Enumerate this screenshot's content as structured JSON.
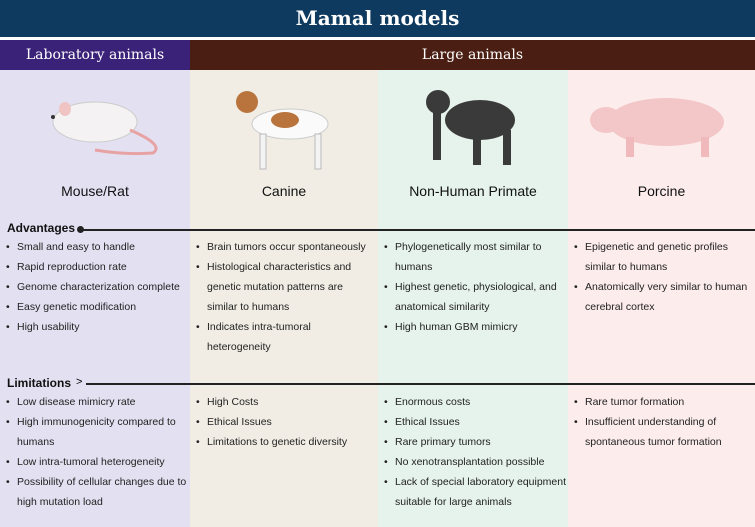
{
  "title": "Mamal models",
  "groups": {
    "laboratory": "Laboratory animals",
    "large": "Large animals"
  },
  "colors": {
    "title_bg": "#0e3a5f",
    "laboratory_bg": "#3b2279",
    "large_bg": "#4a1e12"
  },
  "labels": {
    "advantages": "Advantages",
    "limitations": "Limitations"
  },
  "columns": [
    {
      "name": "Mouse/Rat",
      "icon": "mouse-illustration",
      "advantages": [
        "Small and easy to handle",
        "Rapid reproduction rate",
        "Genome characterization complete",
        "Easy genetic modification",
        "High usability"
      ],
      "limitations": [
        "Low disease mimicry rate",
        "High immunogenicity compared to humans",
        "Low intra-tumoral heterogeneity",
        "Possibility of cellular changes due to high mutation load"
      ]
    },
    {
      "name": "Canine",
      "icon": "dog-illustration",
      "advantages": [
        "Brain tumors occur spontaneously",
        "Histological characteristics and genetic mutation patterns are similar to humans",
        "Indicates intra-tumoral heterogeneity"
      ],
      "limitations": [
        "High Costs",
        "Ethical Issues",
        "Limitations to genetic diversity"
      ]
    },
    {
      "name": "Non-Human Primate",
      "icon": "chimpanzee-illustration",
      "advantages": [
        "Phylogenetically most similar to humans",
        "Highest genetic, physiological, and anatomical similarity",
        "High human GBM mimicry"
      ],
      "limitations": [
        "Enormous costs",
        "Ethical Issues",
        "Rare primary tumors",
        "No xenotransplantation possible",
        "Lack of special laboratory equipment suitable for large animals"
      ]
    },
    {
      "name": "Porcine",
      "icon": "pig-illustration",
      "advantages": [
        "Epigenetic and genetic profiles similar to humans",
        "Anatomically very similar to human cerebral cortex"
      ],
      "limitations": [
        "Rare tumor formation",
        "Insufficient understanding of spontaneous tumor formation"
      ]
    }
  ]
}
